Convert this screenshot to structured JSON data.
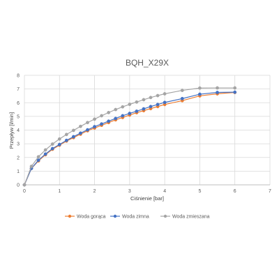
{
  "chart_data": {
    "type": "line",
    "title": "BQH_X29X",
    "xlabel": "Ciśnienie [bar]",
    "ylabel": "Przepływ [l/min]",
    "xlim": [
      0,
      7
    ],
    "ylim": [
      0,
      8
    ],
    "xticks": [
      "0",
      "1",
      "2",
      "3",
      "4",
      "5",
      "6",
      "7"
    ],
    "yticks": [
      "0",
      "1",
      "2",
      "3",
      "4",
      "5",
      "6",
      "7",
      "8"
    ],
    "grid": true,
    "legend_position": "bottom",
    "series": [
      {
        "name": "Woda gorąca",
        "color": "#ED7D31",
        "points": [
          [
            0,
            0
          ],
          [
            0.2,
            1.2
          ],
          [
            0.4,
            1.75
          ],
          [
            0.6,
            2.2
          ],
          [
            0.8,
            2.6
          ],
          [
            1.0,
            2.9
          ],
          [
            1.2,
            3.2
          ],
          [
            1.4,
            3.45
          ],
          [
            1.6,
            3.7
          ],
          [
            1.8,
            3.95
          ],
          [
            2.0,
            4.15
          ],
          [
            2.2,
            4.35
          ],
          [
            2.4,
            4.55
          ],
          [
            2.6,
            4.75
          ],
          [
            2.8,
            4.92
          ],
          [
            3.0,
            5.1
          ],
          [
            3.2,
            5.27
          ],
          [
            3.4,
            5.42
          ],
          [
            3.6,
            5.57
          ],
          [
            3.8,
            5.72
          ],
          [
            4.0,
            5.87
          ],
          [
            4.5,
            6.15
          ],
          [
            5.0,
            6.5
          ],
          [
            5.5,
            6.65
          ],
          [
            6.0,
            6.75
          ]
        ]
      },
      {
        "name": "Woda zimna",
        "color": "#4472C4",
        "points": [
          [
            0,
            0
          ],
          [
            0.2,
            1.2
          ],
          [
            0.4,
            1.8
          ],
          [
            0.6,
            2.25
          ],
          [
            0.8,
            2.65
          ],
          [
            1.0,
            2.95
          ],
          [
            1.2,
            3.25
          ],
          [
            1.4,
            3.52
          ],
          [
            1.6,
            3.78
          ],
          [
            1.8,
            4.02
          ],
          [
            2.0,
            4.25
          ],
          [
            2.2,
            4.45
          ],
          [
            2.4,
            4.65
          ],
          [
            2.6,
            4.85
          ],
          [
            2.8,
            5.05
          ],
          [
            3.0,
            5.22
          ],
          [
            3.2,
            5.38
          ],
          [
            3.4,
            5.55
          ],
          [
            3.6,
            5.72
          ],
          [
            3.8,
            5.87
          ],
          [
            4.0,
            6.02
          ],
          [
            4.5,
            6.3
          ],
          [
            5.0,
            6.62
          ],
          [
            5.5,
            6.75
          ],
          [
            6.0,
            6.77
          ]
        ]
      },
      {
        "name": "Woda zmieszana",
        "color": "#A5A5A5",
        "points": [
          [
            0,
            0
          ],
          [
            0.2,
            1.35
          ],
          [
            0.4,
            2.05
          ],
          [
            0.6,
            2.55
          ],
          [
            0.8,
            2.98
          ],
          [
            1.0,
            3.35
          ],
          [
            1.2,
            3.68
          ],
          [
            1.4,
            3.98
          ],
          [
            1.6,
            4.27
          ],
          [
            1.8,
            4.55
          ],
          [
            2.0,
            4.8
          ],
          [
            2.2,
            5.05
          ],
          [
            2.4,
            5.28
          ],
          [
            2.6,
            5.5
          ],
          [
            2.8,
            5.7
          ],
          [
            3.0,
            5.88
          ],
          [
            3.2,
            6.05
          ],
          [
            3.4,
            6.22
          ],
          [
            3.6,
            6.38
          ],
          [
            3.8,
            6.52
          ],
          [
            4.0,
            6.65
          ],
          [
            4.5,
            6.9
          ],
          [
            5.0,
            7.07
          ],
          [
            5.5,
            7.08
          ],
          [
            6.0,
            7.08
          ]
        ]
      }
    ]
  }
}
